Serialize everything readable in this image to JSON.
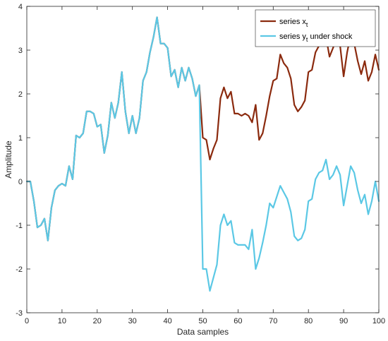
{
  "chart_data": {
    "type": "line",
    "xlabel": "Data samples",
    "ylabel": "Amplitude",
    "xlim": [
      0,
      100
    ],
    "ylim": [
      -3,
      4
    ],
    "xticks": [
      0,
      10,
      20,
      30,
      40,
      50,
      60,
      70,
      80,
      90,
      100
    ],
    "yticks": [
      -3,
      -2,
      -1,
      0,
      1,
      2,
      3,
      4
    ],
    "grid": false,
    "legend_position": "top-right",
    "series": [
      {
        "name": "series x",
        "name_subscript": "t",
        "color": "#8B2A0E",
        "x": [
          0,
          1,
          2,
          3,
          4,
          5,
          6,
          7,
          8,
          9,
          10,
          11,
          12,
          13,
          14,
          15,
          16,
          17,
          18,
          19,
          20,
          21,
          22,
          23,
          24,
          25,
          26,
          27,
          28,
          29,
          30,
          31,
          32,
          33,
          34,
          35,
          36,
          37,
          38,
          39,
          40,
          41,
          42,
          43,
          44,
          45,
          46,
          47,
          48,
          49,
          50,
          51,
          52,
          53,
          54,
          55,
          56,
          57,
          58,
          59,
          60,
          61,
          62,
          63,
          64,
          65,
          66,
          67,
          68,
          69,
          70,
          71,
          72,
          73,
          74,
          75,
          76,
          77,
          78,
          79,
          80,
          81,
          82,
          83,
          84,
          85,
          86,
          87,
          88,
          89,
          90,
          91,
          92,
          93,
          94,
          95,
          96,
          97,
          98,
          99,
          100
        ],
        "y": [
          0,
          0,
          -0.45,
          -1.05,
          -1.0,
          -0.85,
          -1.35,
          -0.6,
          -0.2,
          -0.1,
          -0.05,
          -0.1,
          0.35,
          0.05,
          1.05,
          1.0,
          1.1,
          1.6,
          1.6,
          1.55,
          1.25,
          1.3,
          0.65,
          1.05,
          1.8,
          1.45,
          1.8,
          2.5,
          1.6,
          1.1,
          1.5,
          1.1,
          1.45,
          2.3,
          2.5,
          2.95,
          3.3,
          3.75,
          3.15,
          3.15,
          3.05,
          2.4,
          2.55,
          2.15,
          2.6,
          2.3,
          2.6,
          2.35,
          1.95,
          2.2,
          1.0,
          0.95,
          0.5,
          0.75,
          0.95,
          1.9,
          2.15,
          1.9,
          2.05,
          1.55,
          1.55,
          1.5,
          1.55,
          1.5,
          1.35,
          1.75,
          0.95,
          1.1,
          1.5,
          1.95,
          2.3,
          2.35,
          2.9,
          2.7,
          2.6,
          2.35,
          1.75,
          1.6,
          1.7,
          1.85,
          2.5,
          2.55,
          2.95,
          3.1,
          3.2,
          3.3,
          2.85,
          3.05,
          3.3,
          3.1,
          2.4,
          2.95,
          3.35,
          3.15,
          2.75,
          2.45,
          2.75,
          2.3,
          2.5,
          2.9,
          2.55
        ]
      },
      {
        "name": "series y",
        "name_subscript": "t",
        "name_suffix": " under shock",
        "color": "#5BC8E5",
        "x": [
          0,
          1,
          2,
          3,
          4,
          5,
          6,
          7,
          8,
          9,
          10,
          11,
          12,
          13,
          14,
          15,
          16,
          17,
          18,
          19,
          20,
          21,
          22,
          23,
          24,
          25,
          26,
          27,
          28,
          29,
          30,
          31,
          32,
          33,
          34,
          35,
          36,
          37,
          38,
          39,
          40,
          41,
          42,
          43,
          44,
          45,
          46,
          47,
          48,
          49,
          50,
          51,
          52,
          53,
          54,
          55,
          56,
          57,
          58,
          59,
          60,
          61,
          62,
          63,
          64,
          65,
          66,
          67,
          68,
          69,
          70,
          71,
          72,
          73,
          74,
          75,
          76,
          77,
          78,
          79,
          80,
          81,
          82,
          83,
          84,
          85,
          86,
          87,
          88,
          89,
          90,
          91,
          92,
          93,
          94,
          95,
          96,
          97,
          98,
          99,
          100
        ],
        "y": [
          0,
          0,
          -0.45,
          -1.05,
          -1.0,
          -0.85,
          -1.35,
          -0.6,
          -0.2,
          -0.1,
          -0.05,
          -0.1,
          0.35,
          0.05,
          1.05,
          1.0,
          1.1,
          1.6,
          1.6,
          1.55,
          1.25,
          1.3,
          0.65,
          1.05,
          1.8,
          1.45,
          1.8,
          2.5,
          1.6,
          1.1,
          1.5,
          1.1,
          1.45,
          2.3,
          2.5,
          2.95,
          3.3,
          3.75,
          3.15,
          3.15,
          3.05,
          2.4,
          2.55,
          2.15,
          2.6,
          2.3,
          2.6,
          2.35,
          1.95,
          2.2,
          -2.0,
          -2.0,
          -2.5,
          -2.2,
          -1.9,
          -1.0,
          -0.75,
          -1.0,
          -0.9,
          -1.4,
          -1.45,
          -1.45,
          -1.45,
          -1.55,
          -1.1,
          -2.0,
          -1.75,
          -1.4,
          -1.0,
          -0.5,
          -0.6,
          -0.35,
          -0.1,
          -0.25,
          -0.4,
          -0.7,
          -1.25,
          -1.35,
          -1.3,
          -1.1,
          -0.45,
          -0.4,
          0.05,
          0.2,
          0.25,
          0.5,
          0.05,
          0.15,
          0.35,
          0.15,
          -0.55,
          -0.1,
          0.35,
          0.2,
          -0.2,
          -0.5,
          -0.3,
          -0.75,
          -0.45,
          0.0,
          -0.45
        ]
      }
    ]
  }
}
